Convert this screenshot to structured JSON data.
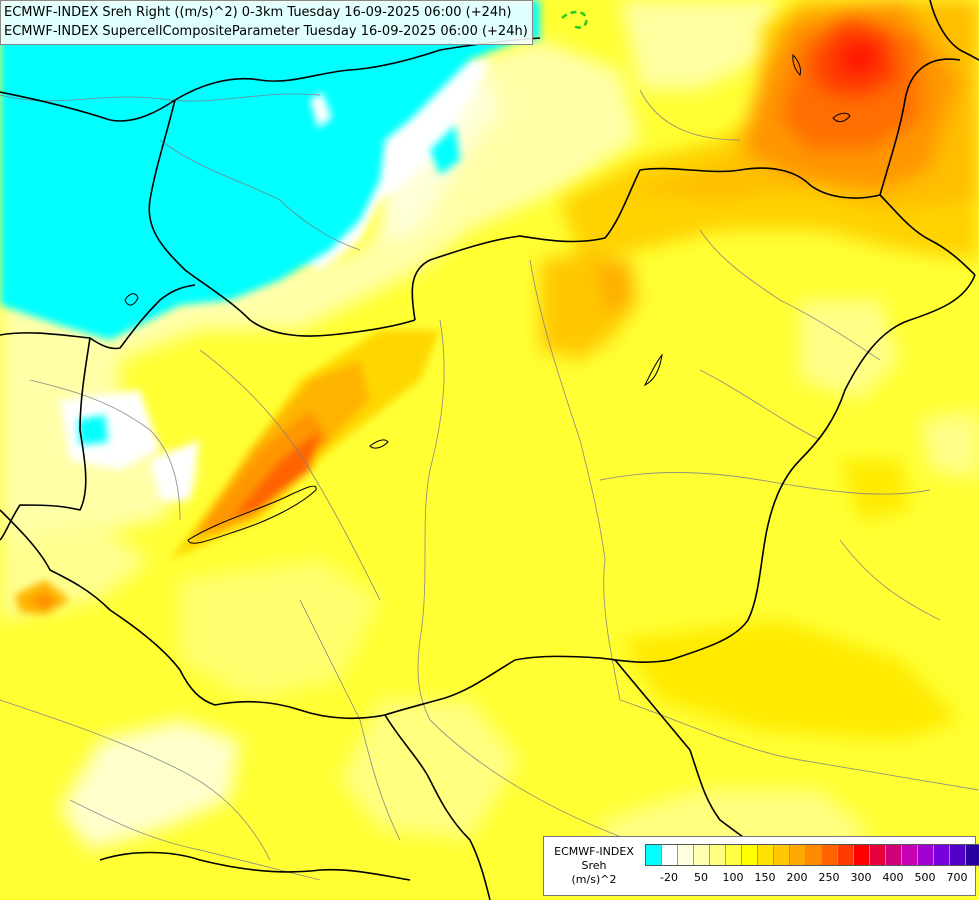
{
  "title_lines": [
    "ECMWF-INDEX Sreh Right ((m/s)^2) 0-3km Tuesday 16-09-2025 06:00 (+24h)",
    "ECMWF-INDEX SupercellCompositeParameter Tuesday 16-09-2025 06:00 (+24h)"
  ],
  "legend": {
    "title_lines": [
      "ECMWF-INDEX",
      "Sreh",
      "(m/s)^2"
    ],
    "colors": [
      "#00ffff",
      "#ffffff",
      "#ffffe0",
      "#ffffb3",
      "#ffff80",
      "#ffff40",
      "#ffff00",
      "#ffe100",
      "#ffc800",
      "#ffaa00",
      "#ff8c00",
      "#ff6400",
      "#ff3c00",
      "#ff0000",
      "#e6003c",
      "#d20078",
      "#c800b4",
      "#a000d2",
      "#7800dc",
      "#5000c8",
      "#2800a0",
      "#000080"
    ],
    "tick_labels": [
      "-20",
      "50",
      "100",
      "150",
      "200",
      "250",
      "300",
      "400",
      "500",
      "700"
    ]
  },
  "overlay_marker_color": "#22cc22"
}
